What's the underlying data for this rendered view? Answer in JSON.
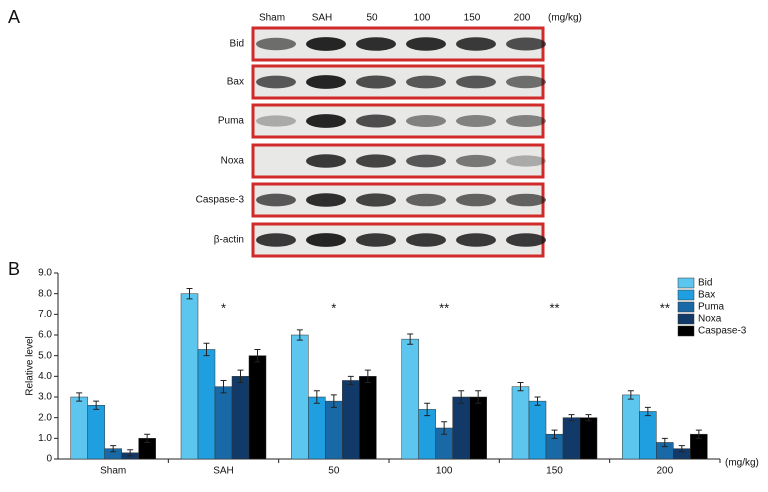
{
  "blot": {
    "panel_label": "A",
    "lanes": [
      "Sham",
      "SAH",
      "50",
      "100",
      "150",
      "200"
    ],
    "unit": "(mg/kg)",
    "proteins": [
      "Bid",
      "Bax",
      "Puma",
      "Noxa",
      "Caspase-3",
      "β-actin"
    ]
  },
  "chart_data": {
    "type": "bar",
    "panel_label": "B",
    "ylabel": "Relative level",
    "x_unit": "(mg/kg)",
    "categories": [
      "Sham",
      "SAH",
      "50",
      "100",
      "150",
      "200"
    ],
    "series": [
      {
        "name": "Bid",
        "color": "#5cc6ef",
        "values": [
          3.0,
          8.0,
          6.0,
          5.8,
          3.5,
          3.1
        ],
        "errors": [
          0.2,
          0.25,
          0.25,
          0.25,
          0.2,
          0.2
        ]
      },
      {
        "name": "Bax",
        "color": "#1f9fe0",
        "values": [
          2.6,
          5.3,
          3.0,
          2.4,
          2.8,
          2.3
        ],
        "errors": [
          0.2,
          0.3,
          0.3,
          0.3,
          0.2,
          0.2
        ]
      },
      {
        "name": "Puma",
        "color": "#1a69a7",
        "values": [
          0.5,
          3.5,
          2.8,
          1.5,
          1.2,
          0.8
        ],
        "errors": [
          0.15,
          0.3,
          0.3,
          0.3,
          0.2,
          0.2
        ]
      },
      {
        "name": "Noxa",
        "color": "#123a68",
        "values": [
          0.3,
          4.0,
          3.8,
          3.0,
          2.0,
          0.5
        ],
        "errors": [
          0.15,
          0.3,
          0.2,
          0.3,
          0.15,
          0.15
        ]
      },
      {
        "name": "Caspase-3",
        "color": "#000000",
        "values": [
          1.0,
          5.0,
          4.0,
          3.0,
          2.0,
          1.2
        ],
        "errors": [
          0.2,
          0.3,
          0.3,
          0.3,
          0.15,
          0.2
        ]
      }
    ],
    "errors_shown": true,
    "ylim": [
      0,
      9
    ],
    "yticks": [
      0,
      {
        "value": 1,
        "label": "1.0"
      },
      {
        "value": 2,
        "label": "2.0"
      },
      {
        "value": 3,
        "label": "3.0"
      },
      {
        "value": 4,
        "label": "4.0"
      },
      {
        "value": 5,
        "label": "5.0"
      },
      {
        "value": 6,
        "label": "6.0"
      },
      {
        "value": 7,
        "label": "7.0"
      },
      {
        "value": 8,
        "label": "8.0"
      },
      {
        "value": 9,
        "label": "9.0"
      }
    ],
    "annotations": [
      {
        "category": "SAH",
        "text": "*"
      },
      {
        "category": "50",
        "text": "*"
      },
      {
        "category": "100",
        "text": "**"
      },
      {
        "category": "150",
        "text": "**"
      },
      {
        "category": "200",
        "text": "**"
      }
    ],
    "legend": "top-right"
  }
}
